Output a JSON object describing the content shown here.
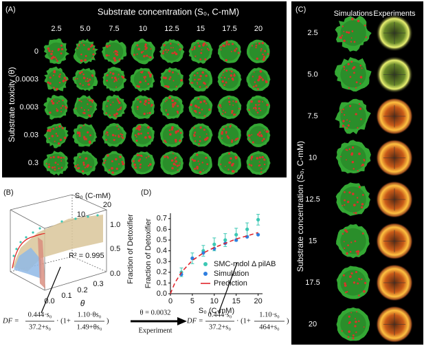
{
  "panel_a": {
    "label": "(A)",
    "title": "Substrate concentration (S₀, C-mM)",
    "columns": [
      "2.5",
      "5.0",
      "7.5",
      "10",
      "12.5",
      "15",
      "17.5",
      "20"
    ],
    "rows": [
      "0",
      "0.0003",
      "0.003",
      "0.03",
      "0.3"
    ],
    "y_label": "Substrate toxicity (θ)"
  },
  "panel_b": {
    "label": "(B)",
    "s_label": "S₀ (C-mM)",
    "s_ticks": [
      "10",
      "20"
    ],
    "z_ticks": [
      "1.0",
      "0.5",
      "0.0"
    ],
    "z_label": "Fraction of Detoxifier",
    "theta_ticks": [
      "0.0",
      "0.1",
      "0.2",
      "0.3"
    ],
    "theta_label": "θ",
    "r2": "R² = 0.995"
  },
  "panel_c": {
    "label": "(C)",
    "headers": [
      "Simulations",
      "Experiments"
    ],
    "rows": [
      "2.5",
      "5.0",
      "7.5",
      "10",
      "12.5",
      "15",
      "17.5",
      "20"
    ],
    "y_label": "Substrate concentration (S₀, C-mM)"
  },
  "chart_data": {
    "type": "scatter",
    "label": "(D)",
    "x_label": "S₀ (C-mM)",
    "y_label": "Fraction of Detoxifier",
    "xlim": [
      0,
      21
    ],
    "ylim": [
      0,
      0.75
    ],
    "xticks": [
      0,
      5,
      10,
      15,
      20
    ],
    "yticks": [
      {
        "value": 0,
        "label": "0.0"
      },
      0.1,
      0.2,
      0.3,
      0.4,
      0.5,
      0.6,
      0.7
    ],
    "series": [
      {
        "name": "SMC-mdol Δ pilAB",
        "color": "#3cc8b4",
        "x": [
          2.5,
          5,
          7.5,
          10,
          12.5,
          15,
          17.5,
          20
        ],
        "values": [
          0.2,
          0.33,
          0.4,
          0.46,
          0.5,
          0.55,
          0.6,
          0.69
        ],
        "errors": [
          0.04,
          0.05,
          0.05,
          0.06,
          0.06,
          0.06,
          0.06,
          0.05
        ]
      },
      {
        "name": "Simulation",
        "color": "#2f7fe0",
        "x": [
          2.5,
          5,
          7.5,
          10,
          12.5,
          15,
          17.5,
          20
        ],
        "values": [
          0.18,
          0.33,
          0.38,
          0.42,
          0.47,
          0.5,
          0.53,
          0.55
        ]
      },
      {
        "name": "Prediction",
        "color": "#e0242a",
        "x": [
          0,
          1,
          2.5,
          5,
          7.5,
          10,
          12.5,
          15,
          17.5,
          20
        ],
        "values": [
          0,
          0.1,
          0.2,
          0.31,
          0.38,
          0.43,
          0.47,
          0.51,
          0.54,
          0.57
        ]
      }
    ]
  },
  "equations": {
    "model": {
      "lhs": "DF =",
      "f1_num": "0.444·s₀",
      "f1_den": "37.2+s₀",
      "mid": "· (1+",
      "f2_num": "1.10·θs₀",
      "f2_den": "1.49+θs₀",
      "close": ")"
    },
    "arrow_top": "θ = 0.0032",
    "arrow_bottom": "Experiment",
    "fitted": {
      "lhs": "DF =",
      "f1_num": "0.444·s₀",
      "f1_den": "37.2+s₀",
      "mid": "· (1+",
      "f2_num": "1.10·s₀",
      "f2_den": "464+s₀",
      "close": ")"
    }
  }
}
